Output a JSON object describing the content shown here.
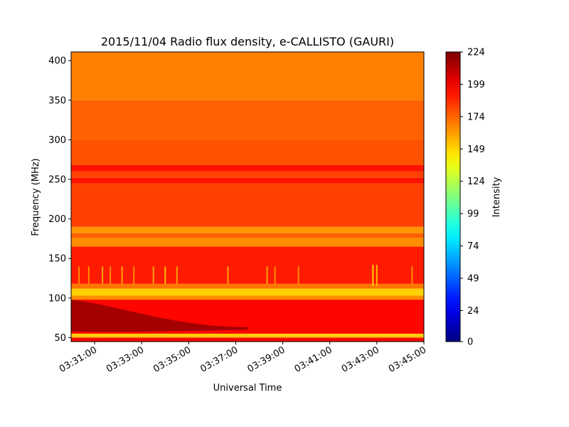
{
  "chart_data": {
    "type": "heatmap",
    "title": "2015/11/04  Radio flux density, e-CALLISTO (GAURI)",
    "xlabel": "Universal Time",
    "ylabel": "Frequency (MHz)",
    "colorbar_label": "Intensity",
    "colormap": "jet",
    "x_range": [
      "03:30:00",
      "03:45:00"
    ],
    "ylim": [
      45,
      411
    ],
    "clim": [
      0,
      224
    ],
    "x_ticks": [
      "03:31:00",
      "03:33:00",
      "03:35:00",
      "03:37:00",
      "03:39:00",
      "03:41:00",
      "03:43:00",
      "03:45:00"
    ],
    "y_ticks": [
      50,
      100,
      150,
      200,
      250,
      300,
      350,
      400
    ],
    "colorbar_ticks": [
      0,
      24,
      49,
      74,
      99,
      124,
      149,
      174,
      199,
      224
    ],
    "background_intensity_bands": [
      {
        "freq_min": 45,
        "freq_max": 50,
        "intensity": 195
      },
      {
        "freq_min": 50,
        "freq_max": 52,
        "intensity": 155
      },
      {
        "freq_min": 52,
        "freq_max": 55,
        "intensity": 150
      },
      {
        "freq_min": 55,
        "freq_max": 98,
        "intensity": 195
      },
      {
        "freq_min": 98,
        "freq_max": 103,
        "intensity": 165
      },
      {
        "freq_min": 103,
        "freq_max": 112,
        "intensity": 150
      },
      {
        "freq_min": 112,
        "freq_max": 118,
        "intensity": 170
      },
      {
        "freq_min": 118,
        "freq_max": 165,
        "intensity": 190
      },
      {
        "freq_min": 165,
        "freq_max": 176,
        "intensity": 165
      },
      {
        "freq_min": 176,
        "freq_max": 182,
        "intensity": 175
      },
      {
        "freq_min": 182,
        "freq_max": 190,
        "intensity": 163
      },
      {
        "freq_min": 190,
        "freq_max": 245,
        "intensity": 182
      },
      {
        "freq_min": 245,
        "freq_max": 252,
        "intensity": 192
      },
      {
        "freq_min": 252,
        "freq_max": 260,
        "intensity": 182
      },
      {
        "freq_min": 260,
        "freq_max": 268,
        "intensity": 192
      },
      {
        "freq_min": 268,
        "freq_max": 300,
        "intensity": 178
      },
      {
        "freq_min": 300,
        "freq_max": 350,
        "intensity": 175
      },
      {
        "freq_min": 350,
        "freq_max": 411,
        "intensity": 168
      }
    ],
    "burst_region": {
      "description_time_start": "03:30:00",
      "description_time_end": "03:37:30",
      "freq_min": 58,
      "freq_max": 98,
      "intensity": 218
    },
    "spikes": [
      {
        "time": "03:30:20",
        "freq_min": 118,
        "freq_max": 140,
        "intensity": 165
      },
      {
        "time": "03:30:45",
        "freq_min": 118,
        "freq_max": 140,
        "intensity": 165
      },
      {
        "time": "03:31:20",
        "freq_min": 118,
        "freq_max": 140,
        "intensity": 160
      },
      {
        "time": "03:31:40",
        "freq_min": 118,
        "freq_max": 140,
        "intensity": 165
      },
      {
        "time": "03:32:10",
        "freq_min": 118,
        "freq_max": 140,
        "intensity": 160
      },
      {
        "time": "03:32:40",
        "freq_min": 118,
        "freq_max": 140,
        "intensity": 165
      },
      {
        "time": "03:33:30",
        "freq_min": 118,
        "freq_max": 140,
        "intensity": 160
      },
      {
        "time": "03:34:00",
        "freq_min": 118,
        "freq_max": 140,
        "intensity": 155
      },
      {
        "time": "03:34:30",
        "freq_min": 118,
        "freq_max": 140,
        "intensity": 160
      },
      {
        "time": "03:36:40",
        "freq_min": 118,
        "freq_max": 140,
        "intensity": 160
      },
      {
        "time": "03:38:20",
        "freq_min": 118,
        "freq_max": 140,
        "intensity": 160
      },
      {
        "time": "03:38:40",
        "freq_min": 118,
        "freq_max": 140,
        "intensity": 165
      },
      {
        "time": "03:39:40",
        "freq_min": 118,
        "freq_max": 140,
        "intensity": 165
      },
      {
        "time": "03:42:50",
        "freq_min": 115,
        "freq_max": 142,
        "intensity": 150
      },
      {
        "time": "03:43:00",
        "freq_min": 115,
        "freq_max": 142,
        "intensity": 155
      },
      {
        "time": "03:44:30",
        "freq_min": 118,
        "freq_max": 140,
        "intensity": 165
      }
    ]
  }
}
